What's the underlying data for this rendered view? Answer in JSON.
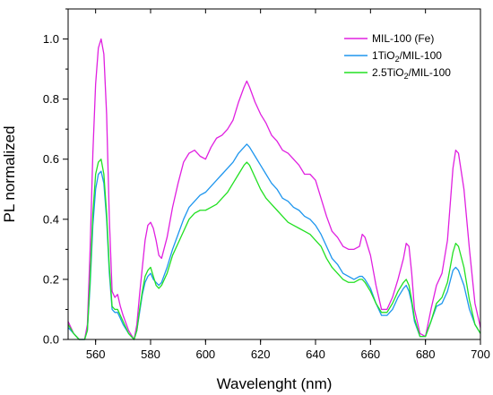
{
  "chart_data": {
    "type": "line",
    "title": "",
    "xlabel": "Wavelenght (nm)",
    "ylabel": "PL normalized",
    "xlim": [
      550,
      700
    ],
    "ylim": [
      0,
      1.1
    ],
    "x_ticks": [
      560,
      580,
      600,
      620,
      640,
      660,
      680,
      700
    ],
    "y_ticks": [
      0.0,
      0.2,
      0.4,
      0.6,
      0.8,
      1.0
    ],
    "x_tick_labels": [
      "560",
      "580",
      "600",
      "620",
      "640",
      "660",
      "680",
      "700"
    ],
    "y_tick_labels": [
      "0.0",
      "0.2",
      "0.4",
      "0.6",
      "0.8",
      "1.0"
    ],
    "grid": false,
    "legend_position": "top-right",
    "series": [
      {
        "name": "MIL-100 (Fe)",
        "legend_main": "MIL-100 (Fe)",
        "legend_sub": "",
        "legend_tail": "",
        "color": "#e020e0",
        "points": [
          [
            550,
            0.06
          ],
          [
            552,
            0.02
          ],
          [
            554,
            0.0
          ],
          [
            556,
            0.0
          ],
          [
            557,
            0.05
          ],
          [
            558,
            0.3
          ],
          [
            559,
            0.62
          ],
          [
            560,
            0.85
          ],
          [
            561,
            0.97
          ],
          [
            562,
            1.0
          ],
          [
            563,
            0.95
          ],
          [
            564,
            0.75
          ],
          [
            565,
            0.4
          ],
          [
            566,
            0.16
          ],
          [
            567,
            0.14
          ],
          [
            568,
            0.15
          ],
          [
            569,
            0.11
          ],
          [
            570,
            0.08
          ],
          [
            572,
            0.03
          ],
          [
            574,
            0.0
          ],
          [
            575,
            0.05
          ],
          [
            576,
            0.15
          ],
          [
            577,
            0.24
          ],
          [
            578,
            0.33
          ],
          [
            579,
            0.38
          ],
          [
            580,
            0.39
          ],
          [
            581,
            0.37
          ],
          [
            582,
            0.33
          ],
          [
            583,
            0.28
          ],
          [
            584,
            0.27
          ],
          [
            586,
            0.34
          ],
          [
            588,
            0.44
          ],
          [
            590,
            0.52
          ],
          [
            592,
            0.59
          ],
          [
            594,
            0.62
          ],
          [
            596,
            0.63
          ],
          [
            598,
            0.61
          ],
          [
            600,
            0.6
          ],
          [
            602,
            0.64
          ],
          [
            604,
            0.67
          ],
          [
            606,
            0.68
          ],
          [
            608,
            0.7
          ],
          [
            610,
            0.73
          ],
          [
            612,
            0.79
          ],
          [
            614,
            0.84
          ],
          [
            615,
            0.86
          ],
          [
            616,
            0.84
          ],
          [
            618,
            0.79
          ],
          [
            620,
            0.75
          ],
          [
            622,
            0.72
          ],
          [
            624,
            0.68
          ],
          [
            626,
            0.66
          ],
          [
            628,
            0.63
          ],
          [
            630,
            0.62
          ],
          [
            632,
            0.6
          ],
          [
            634,
            0.58
          ],
          [
            636,
            0.55
          ],
          [
            638,
            0.55
          ],
          [
            640,
            0.53
          ],
          [
            642,
            0.47
          ],
          [
            644,
            0.41
          ],
          [
            646,
            0.36
          ],
          [
            648,
            0.34
          ],
          [
            650,
            0.31
          ],
          [
            652,
            0.3
          ],
          [
            654,
            0.3
          ],
          [
            656,
            0.31
          ],
          [
            657,
            0.35
          ],
          [
            658,
            0.34
          ],
          [
            660,
            0.28
          ],
          [
            662,
            0.18
          ],
          [
            664,
            0.1
          ],
          [
            666,
            0.1
          ],
          [
            668,
            0.14
          ],
          [
            670,
            0.2
          ],
          [
            672,
            0.27
          ],
          [
            673,
            0.32
          ],
          [
            674,
            0.31
          ],
          [
            675,
            0.22
          ],
          [
            676,
            0.1
          ],
          [
            678,
            0.02
          ],
          [
            680,
            0.01
          ],
          [
            682,
            0.1
          ],
          [
            684,
            0.18
          ],
          [
            686,
            0.22
          ],
          [
            688,
            0.33
          ],
          [
            690,
            0.57
          ],
          [
            691,
            0.63
          ],
          [
            692,
            0.62
          ],
          [
            694,
            0.5
          ],
          [
            696,
            0.3
          ],
          [
            698,
            0.12
          ],
          [
            700,
            0.04
          ]
        ]
      },
      {
        "name": "1TiO2/MIL-100",
        "legend_main": "1TiO",
        "legend_sub": "2",
        "legend_tail": "/MIL-100",
        "color": "#1e96ee",
        "points": [
          [
            550,
            0.04
          ],
          [
            552,
            0.02
          ],
          [
            554,
            0.0
          ],
          [
            556,
            0.0
          ],
          [
            557,
            0.03
          ],
          [
            558,
            0.18
          ],
          [
            559,
            0.38
          ],
          [
            560,
            0.5
          ],
          [
            561,
            0.55
          ],
          [
            562,
            0.56
          ],
          [
            563,
            0.52
          ],
          [
            564,
            0.4
          ],
          [
            565,
            0.22
          ],
          [
            566,
            0.1
          ],
          [
            567,
            0.09
          ],
          [
            568,
            0.09
          ],
          [
            569,
            0.07
          ],
          [
            570,
            0.05
          ],
          [
            572,
            0.02
          ],
          [
            574,
            0.0
          ],
          [
            575,
            0.03
          ],
          [
            576,
            0.09
          ],
          [
            577,
            0.15
          ],
          [
            578,
            0.19
          ],
          [
            579,
            0.21
          ],
          [
            580,
            0.22
          ],
          [
            581,
            0.2
          ],
          [
            582,
            0.19
          ],
          [
            583,
            0.18
          ],
          [
            584,
            0.19
          ],
          [
            586,
            0.24
          ],
          [
            588,
            0.3
          ],
          [
            590,
            0.35
          ],
          [
            592,
            0.4
          ],
          [
            594,
            0.44
          ],
          [
            596,
            0.46
          ],
          [
            598,
            0.48
          ],
          [
            600,
            0.49
          ],
          [
            602,
            0.51
          ],
          [
            604,
            0.53
          ],
          [
            606,
            0.55
          ],
          [
            608,
            0.57
          ],
          [
            610,
            0.59
          ],
          [
            612,
            0.62
          ],
          [
            614,
            0.64
          ],
          [
            615,
            0.65
          ],
          [
            616,
            0.64
          ],
          [
            618,
            0.61
          ],
          [
            620,
            0.58
          ],
          [
            622,
            0.55
          ],
          [
            624,
            0.52
          ],
          [
            626,
            0.5
          ],
          [
            628,
            0.47
          ],
          [
            630,
            0.46
          ],
          [
            632,
            0.44
          ],
          [
            634,
            0.43
          ],
          [
            636,
            0.41
          ],
          [
            638,
            0.4
          ],
          [
            640,
            0.38
          ],
          [
            642,
            0.35
          ],
          [
            644,
            0.31
          ],
          [
            646,
            0.27
          ],
          [
            648,
            0.25
          ],
          [
            650,
            0.22
          ],
          [
            652,
            0.21
          ],
          [
            654,
            0.2
          ],
          [
            656,
            0.21
          ],
          [
            657,
            0.21
          ],
          [
            658,
            0.2
          ],
          [
            660,
            0.17
          ],
          [
            662,
            0.12
          ],
          [
            664,
            0.08
          ],
          [
            666,
            0.08
          ],
          [
            668,
            0.1
          ],
          [
            670,
            0.14
          ],
          [
            672,
            0.17
          ],
          [
            673,
            0.18
          ],
          [
            674,
            0.16
          ],
          [
            675,
            0.12
          ],
          [
            676,
            0.06
          ],
          [
            678,
            0.01
          ],
          [
            680,
            0.01
          ],
          [
            682,
            0.06
          ],
          [
            684,
            0.11
          ],
          [
            686,
            0.12
          ],
          [
            688,
            0.16
          ],
          [
            690,
            0.23
          ],
          [
            691,
            0.24
          ],
          [
            692,
            0.23
          ],
          [
            694,
            0.18
          ],
          [
            696,
            0.1
          ],
          [
            698,
            0.05
          ],
          [
            700,
            0.02
          ]
        ]
      },
      {
        "name": "2.5TiO2/MIL-100",
        "legend_main": "2.5TiO",
        "legend_sub": "2",
        "legend_tail": "/MIL-100",
        "color": "#22e022",
        "points": [
          [
            550,
            0.05
          ],
          [
            552,
            0.02
          ],
          [
            554,
            0.0
          ],
          [
            556,
            0.0
          ],
          [
            557,
            0.03
          ],
          [
            558,
            0.2
          ],
          [
            559,
            0.42
          ],
          [
            560,
            0.55
          ],
          [
            561,
            0.59
          ],
          [
            562,
            0.6
          ],
          [
            563,
            0.55
          ],
          [
            564,
            0.42
          ],
          [
            565,
            0.24
          ],
          [
            566,
            0.11
          ],
          [
            567,
            0.1
          ],
          [
            568,
            0.1
          ],
          [
            569,
            0.08
          ],
          [
            570,
            0.06
          ],
          [
            572,
            0.02
          ],
          [
            574,
            0.0
          ],
          [
            575,
            0.03
          ],
          [
            576,
            0.1
          ],
          [
            577,
            0.16
          ],
          [
            578,
            0.21
          ],
          [
            579,
            0.23
          ],
          [
            580,
            0.24
          ],
          [
            581,
            0.21
          ],
          [
            582,
            0.18
          ],
          [
            583,
            0.17
          ],
          [
            584,
            0.18
          ],
          [
            586,
            0.22
          ],
          [
            588,
            0.28
          ],
          [
            590,
            0.32
          ],
          [
            592,
            0.36
          ],
          [
            594,
            0.4
          ],
          [
            596,
            0.42
          ],
          [
            598,
            0.43
          ],
          [
            600,
            0.43
          ],
          [
            602,
            0.44
          ],
          [
            604,
            0.45
          ],
          [
            606,
            0.47
          ],
          [
            608,
            0.49
          ],
          [
            610,
            0.52
          ],
          [
            612,
            0.55
          ],
          [
            614,
            0.58
          ],
          [
            615,
            0.59
          ],
          [
            616,
            0.58
          ],
          [
            618,
            0.54
          ],
          [
            620,
            0.5
          ],
          [
            622,
            0.47
          ],
          [
            624,
            0.45
          ],
          [
            626,
            0.43
          ],
          [
            628,
            0.41
          ],
          [
            630,
            0.39
          ],
          [
            632,
            0.38
          ],
          [
            634,
            0.37
          ],
          [
            636,
            0.36
          ],
          [
            638,
            0.35
          ],
          [
            640,
            0.33
          ],
          [
            642,
            0.31
          ],
          [
            644,
            0.27
          ],
          [
            646,
            0.24
          ],
          [
            648,
            0.22
          ],
          [
            650,
            0.2
          ],
          [
            652,
            0.19
          ],
          [
            654,
            0.19
          ],
          [
            656,
            0.2
          ],
          [
            657,
            0.2
          ],
          [
            658,
            0.19
          ],
          [
            660,
            0.16
          ],
          [
            662,
            0.12
          ],
          [
            664,
            0.09
          ],
          [
            666,
            0.09
          ],
          [
            668,
            0.12
          ],
          [
            670,
            0.16
          ],
          [
            672,
            0.19
          ],
          [
            673,
            0.2
          ],
          [
            674,
            0.18
          ],
          [
            675,
            0.13
          ],
          [
            676,
            0.07
          ],
          [
            678,
            0.01
          ],
          [
            680,
            0.01
          ],
          [
            682,
            0.06
          ],
          [
            684,
            0.12
          ],
          [
            686,
            0.14
          ],
          [
            688,
            0.19
          ],
          [
            690,
            0.29
          ],
          [
            691,
            0.32
          ],
          [
            692,
            0.31
          ],
          [
            694,
            0.24
          ],
          [
            696,
            0.13
          ],
          [
            698,
            0.05
          ],
          [
            700,
            0.02
          ]
        ]
      }
    ]
  }
}
